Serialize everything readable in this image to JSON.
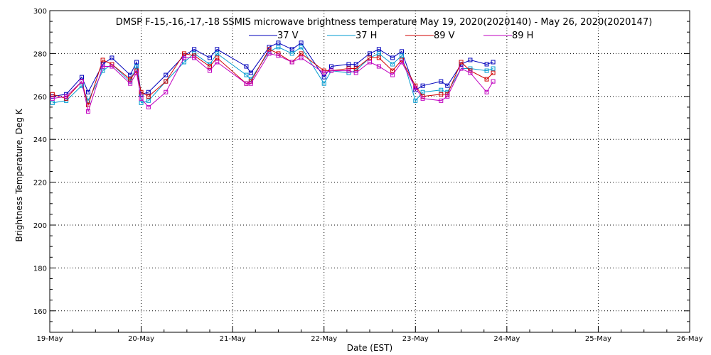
{
  "chart_data": {
    "type": "line",
    "title": "DMSP F-15,-16,-17,-18 SSMIS microwave brightness temperature May 19, 2020(2020140) - May 26, 2020(2020147)",
    "xlabel": "Date (EST)",
    "ylabel": "Brightness Temperature, Deg K",
    "x_ticks": [
      "19-May",
      "20-May",
      "21-May",
      "22-May",
      "23-May",
      "24-May",
      "25-May",
      "26-May"
    ],
    "xlim": [
      "19-May",
      "26-May"
    ],
    "ylim": [
      150,
      300
    ],
    "y_ticks": [
      160,
      180,
      200,
      220,
      240,
      260,
      280,
      300
    ],
    "grid": true,
    "legend_position": "top",
    "series": [
      {
        "name": "37 V",
        "color": "#0000bb",
        "points": [
          [
            0.03,
            260
          ],
          [
            0.18,
            261
          ],
          [
            0.35,
            269
          ],
          [
            0.42,
            262
          ],
          [
            0.58,
            275
          ],
          [
            0.68,
            278
          ],
          [
            0.88,
            270
          ],
          [
            0.95,
            276
          ],
          [
            1.0,
            261
          ],
          [
            1.08,
            262
          ],
          [
            1.27,
            270
          ],
          [
            1.47,
            279
          ],
          [
            1.58,
            282
          ],
          [
            1.75,
            278
          ],
          [
            1.83,
            282
          ],
          [
            2.15,
            274
          ],
          [
            2.2,
            271
          ],
          [
            2.4,
            283
          ],
          [
            2.5,
            285
          ],
          [
            2.65,
            282
          ],
          [
            2.75,
            285
          ],
          [
            3.0,
            269
          ],
          [
            3.08,
            274
          ],
          [
            3.27,
            275
          ],
          [
            3.35,
            275
          ],
          [
            3.5,
            280
          ],
          [
            3.6,
            282
          ],
          [
            3.75,
            278
          ],
          [
            3.85,
            281
          ],
          [
            4.0,
            263
          ],
          [
            4.08,
            265
          ],
          [
            4.28,
            267
          ],
          [
            4.35,
            265
          ],
          [
            4.5,
            275
          ],
          [
            4.6,
            277
          ],
          [
            4.78,
            275
          ],
          [
            4.85,
            276
          ]
        ]
      },
      {
        "name": "37 H",
        "color": "#009bd0",
        "points": [
          [
            0.03,
            257
          ],
          [
            0.18,
            258
          ],
          [
            0.35,
            265
          ],
          [
            0.42,
            258
          ],
          [
            0.58,
            272
          ],
          [
            0.68,
            275
          ],
          [
            0.88,
            267
          ],
          [
            0.95,
            274
          ],
          [
            1.0,
            257
          ],
          [
            1.08,
            258
          ],
          [
            1.27,
            267
          ],
          [
            1.47,
            276
          ],
          [
            1.58,
            280
          ],
          [
            1.75,
            275
          ],
          [
            1.83,
            280
          ],
          [
            2.15,
            270
          ],
          [
            2.2,
            268
          ],
          [
            2.4,
            281
          ],
          [
            2.5,
            283
          ],
          [
            2.65,
            280
          ],
          [
            2.75,
            283
          ],
          [
            3.0,
            266
          ],
          [
            3.08,
            272
          ],
          [
            3.27,
            271
          ],
          [
            3.35,
            272
          ],
          [
            3.5,
            278
          ],
          [
            3.6,
            280
          ],
          [
            3.75,
            275
          ],
          [
            3.85,
            279
          ],
          [
            4.0,
            258
          ],
          [
            4.08,
            262
          ],
          [
            4.28,
            263
          ],
          [
            4.35,
            262
          ],
          [
            4.5,
            273
          ],
          [
            4.6,
            273
          ],
          [
            4.78,
            272
          ],
          [
            4.85,
            273
          ]
        ]
      },
      {
        "name": "89 V",
        "color": "#d00000",
        "points": [
          [
            0.03,
            261
          ],
          [
            0.18,
            259
          ],
          [
            0.35,
            267
          ],
          [
            0.42,
            256
          ],
          [
            0.58,
            277
          ],
          [
            0.68,
            275
          ],
          [
            0.88,
            268
          ],
          [
            0.95,
            272
          ],
          [
            1.0,
            262
          ],
          [
            1.08,
            260
          ],
          [
            1.27,
            267
          ],
          [
            1.47,
            280
          ],
          [
            1.58,
            279
          ],
          [
            1.75,
            274
          ],
          [
            1.83,
            278
          ],
          [
            2.15,
            266
          ],
          [
            2.2,
            267
          ],
          [
            2.4,
            282
          ],
          [
            2.5,
            280
          ],
          [
            2.65,
            276
          ],
          [
            2.75,
            280
          ],
          [
            3.0,
            272
          ],
          [
            3.08,
            272
          ],
          [
            3.27,
            273
          ],
          [
            3.35,
            273
          ],
          [
            3.5,
            278
          ],
          [
            3.6,
            278
          ],
          [
            3.75,
            272
          ],
          [
            3.85,
            277
          ],
          [
            4.0,
            265
          ],
          [
            4.08,
            260
          ],
          [
            4.28,
            261
          ],
          [
            4.35,
            261
          ],
          [
            4.5,
            276
          ],
          [
            4.6,
            272
          ],
          [
            4.78,
            268
          ],
          [
            4.85,
            271
          ]
        ]
      },
      {
        "name": "89 H",
        "color": "#c000c0",
        "points": [
          [
            0.03,
            259
          ],
          [
            0.18,
            260
          ],
          [
            0.35,
            267
          ],
          [
            0.42,
            253
          ],
          [
            0.58,
            274
          ],
          [
            0.68,
            274
          ],
          [
            0.88,
            266
          ],
          [
            0.95,
            271
          ],
          [
            1.0,
            259
          ],
          [
            1.08,
            255
          ],
          [
            1.27,
            262
          ],
          [
            1.47,
            278
          ],
          [
            1.58,
            278
          ],
          [
            1.75,
            272
          ],
          [
            1.83,
            276
          ],
          [
            2.15,
            266
          ],
          [
            2.2,
            266
          ],
          [
            2.4,
            280
          ],
          [
            2.5,
            279
          ],
          [
            2.65,
            276
          ],
          [
            2.75,
            278
          ],
          [
            3.0,
            271
          ],
          [
            3.08,
            272
          ],
          [
            3.27,
            272
          ],
          [
            3.35,
            271
          ],
          [
            3.5,
            276
          ],
          [
            3.6,
            274
          ],
          [
            3.75,
            270
          ],
          [
            3.85,
            276
          ],
          [
            4.0,
            264
          ],
          [
            4.08,
            259
          ],
          [
            4.28,
            258
          ],
          [
            4.35,
            260
          ],
          [
            4.5,
            273
          ],
          [
            4.6,
            271
          ],
          [
            4.78,
            262
          ],
          [
            4.85,
            267
          ]
        ]
      }
    ]
  }
}
